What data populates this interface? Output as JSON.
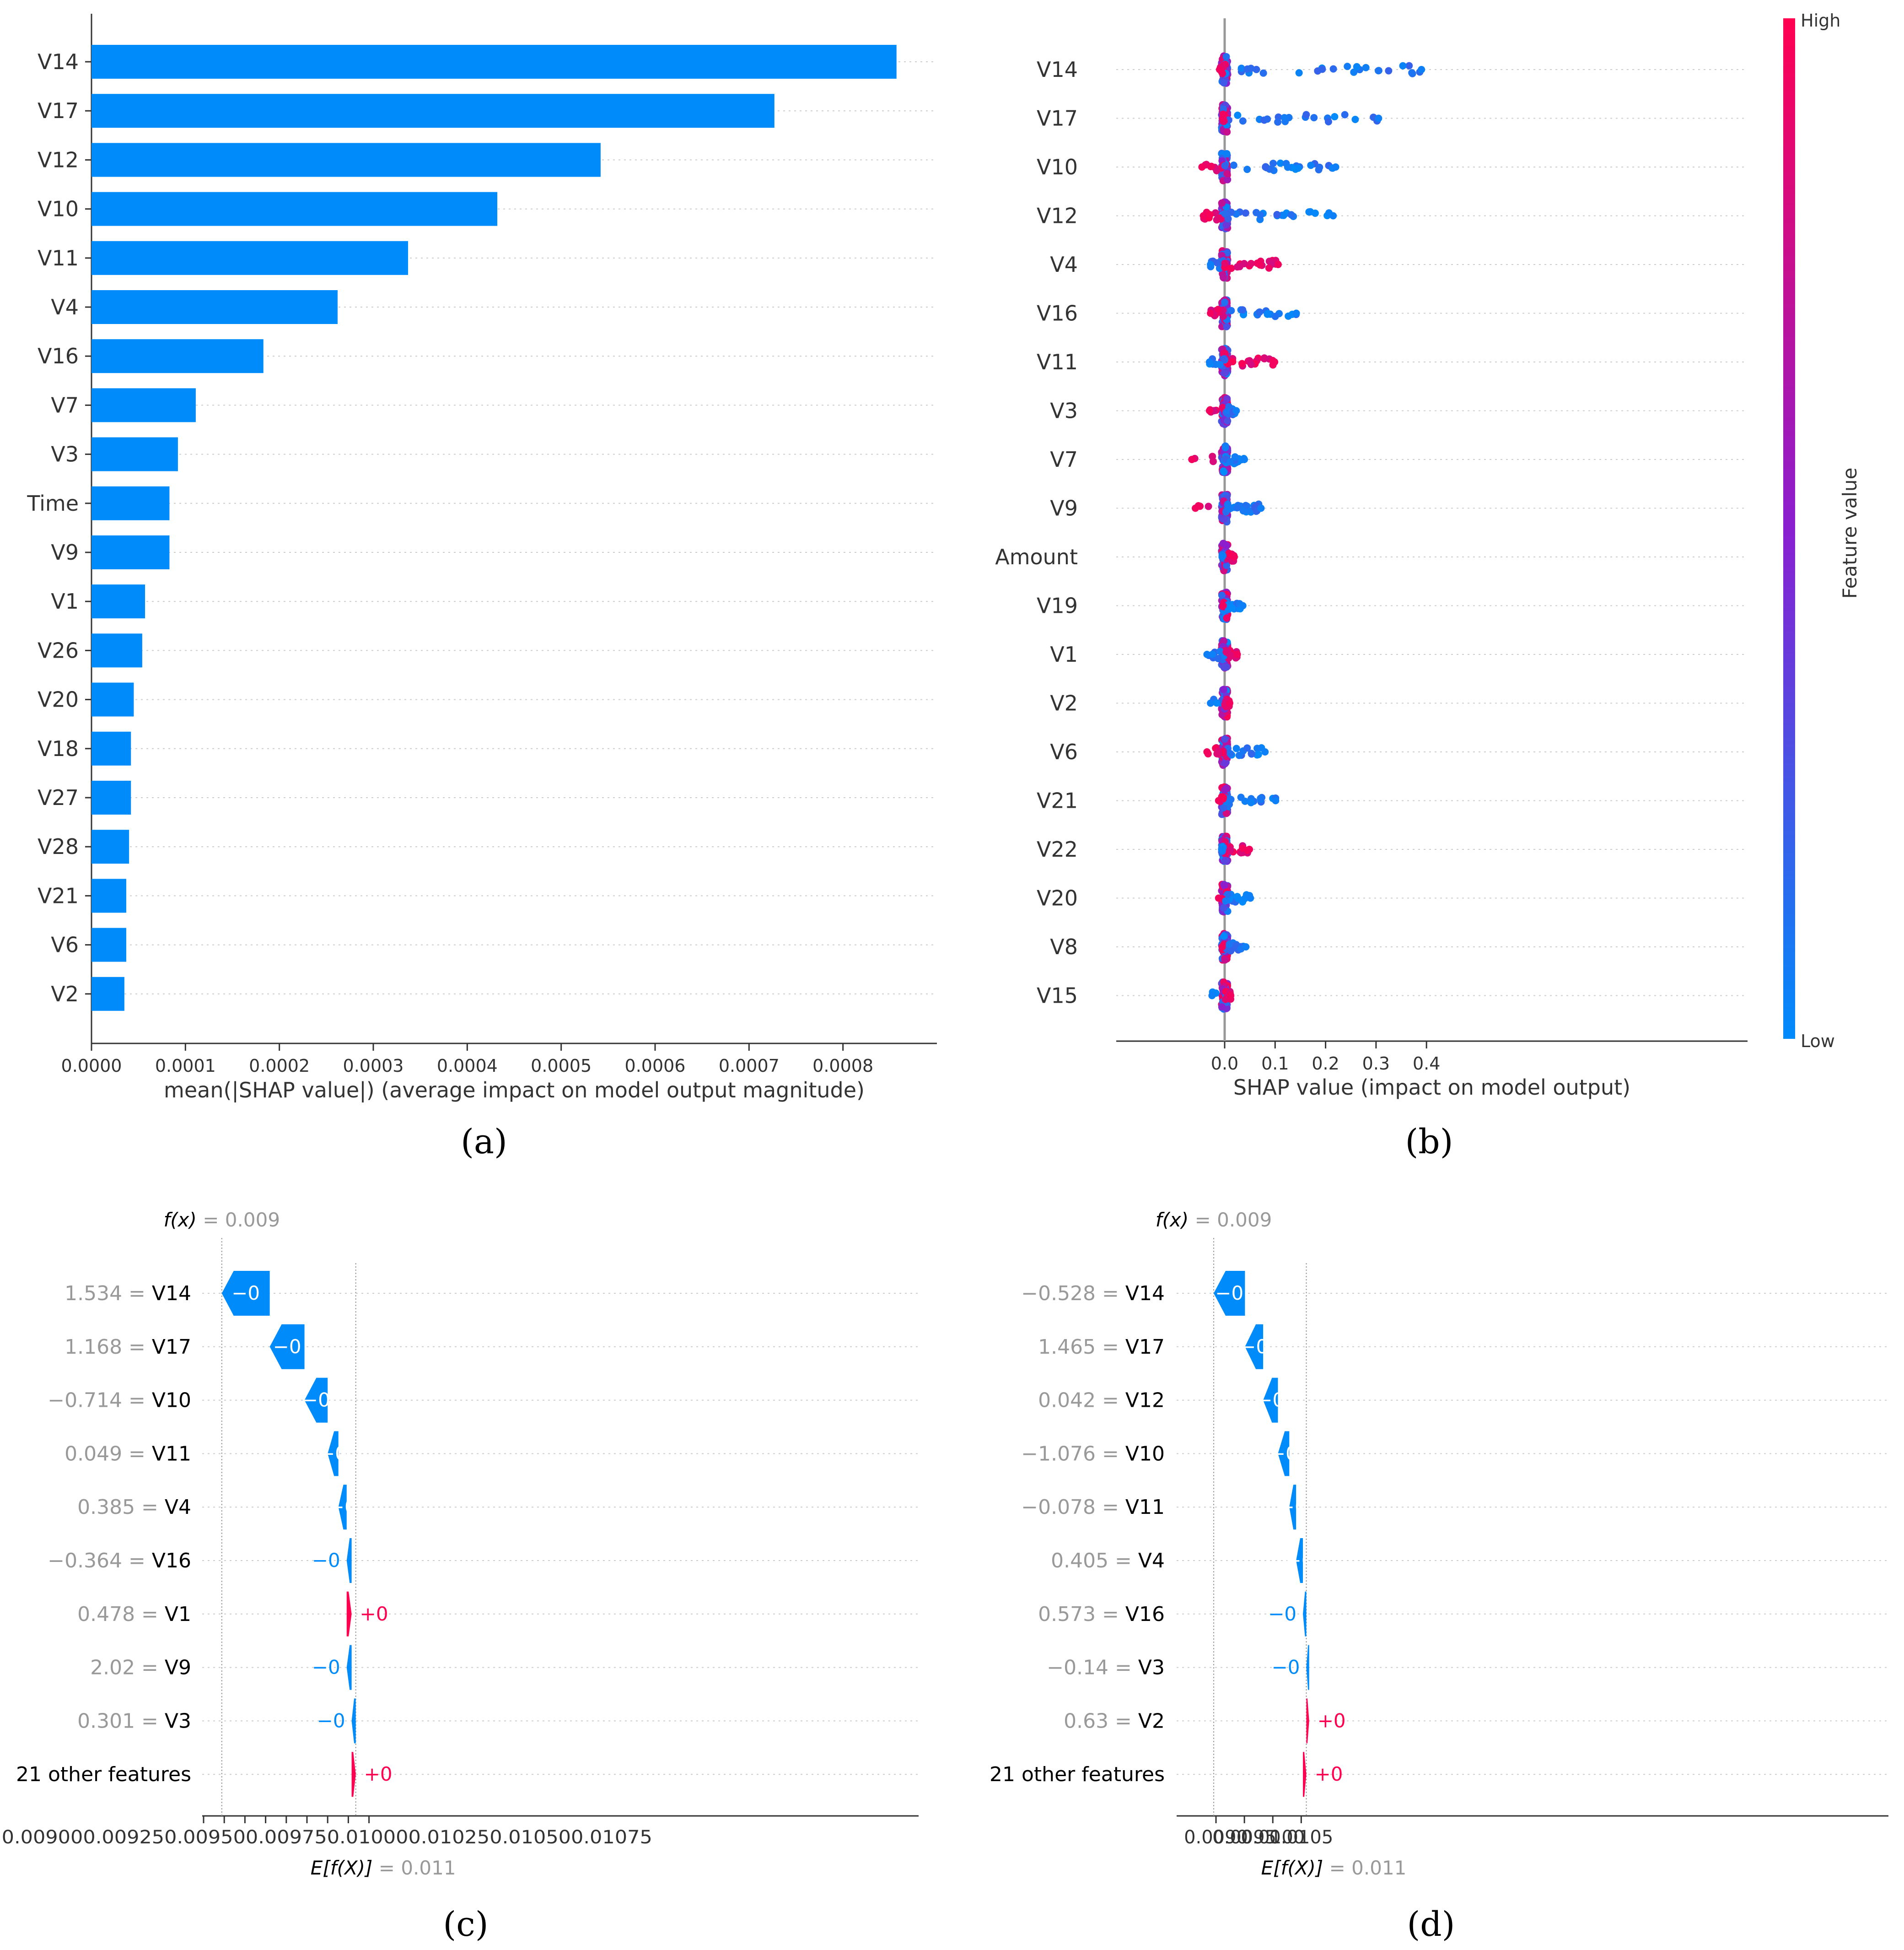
{
  "colors": {
    "blue": "#008bfb",
    "pink": "#ff0051",
    "axis": "#333333",
    "grey": "#999999",
    "grid": "#cccccc"
  },
  "chart_data": [
    {
      "id": "a",
      "panel_label": "(a)",
      "type": "bar",
      "orientation": "horizontal",
      "categories": [
        "V14",
        "V17",
        "V12",
        "V10",
        "V11",
        "V4",
        "V16",
        "V7",
        "V3",
        "Time",
        "V9",
        "V1",
        "V26",
        "V20",
        "V18",
        "V27",
        "V28",
        "V21",
        "V6",
        "V2"
      ],
      "values": [
        0.000857,
        0.000727,
        0.000542,
        0.000432,
        0.000337,
        0.000262,
        0.000183,
        0.000111,
        9.2e-05,
        8.3e-05,
        8.3e-05,
        5.7e-05,
        5.4e-05,
        4.5e-05,
        4.2e-05,
        4.2e-05,
        4e-05,
        3.7e-05,
        3.7e-05,
        3.5e-05
      ],
      "xlim": [
        0,
        0.0009
      ],
      "xticks": [
        0,
        0.0001,
        0.0002,
        0.0003,
        0.0004,
        0.0005,
        0.0006,
        0.0007,
        0.0008
      ],
      "xtick_labels": [
        "0.0000",
        "0.0001",
        "0.0002",
        "0.0003",
        "0.0004",
        "0.0005",
        "0.0006",
        "0.0007",
        "0.0008"
      ],
      "xlabel": "mean(|SHAP value|) (average impact on model output magnitude)"
    },
    {
      "id": "b",
      "panel_label": "(b)",
      "type": "scatter",
      "subtype": "beeswarm",
      "features": [
        {
          "name": "V14",
          "min": -0.01,
          "max": 0.39,
          "lowside": "right",
          "spread": 0.9
        },
        {
          "name": "V17",
          "min": -0.003,
          "max": 0.305,
          "lowside": "right",
          "spread": 0.85
        },
        {
          "name": "V10",
          "min": -0.045,
          "max": 0.22,
          "lowside": "right",
          "spread": 0.8
        },
        {
          "name": "V12",
          "min": -0.042,
          "max": 0.215,
          "lowside": "right",
          "spread": 0.8
        },
        {
          "name": "V4",
          "min": -0.028,
          "max": 0.106,
          "lowside": "left",
          "spread": 0.7
        },
        {
          "name": "V16",
          "min": -0.028,
          "max": 0.142,
          "lowside": "right",
          "spread": 0.7
        },
        {
          "name": "V11",
          "min": -0.03,
          "max": 0.099,
          "lowside": "left",
          "spread": 0.7
        },
        {
          "name": "V3",
          "min": -0.03,
          "max": 0.023,
          "lowside": "right",
          "spread": 0.4
        },
        {
          "name": "V7",
          "min": -0.065,
          "max": 0.039,
          "lowside": "right",
          "spread": 0.6
        },
        {
          "name": "V9",
          "min": -0.058,
          "max": 0.072,
          "lowside": "right",
          "spread": 0.6
        },
        {
          "name": "Amount",
          "min": -0.005,
          "max": 0.019,
          "lowside": "left",
          "spread": 0.3
        },
        {
          "name": "V19",
          "min": -0.003,
          "max": 0.036,
          "lowside": "right",
          "spread": 0.35
        },
        {
          "name": "V1",
          "min": -0.035,
          "max": 0.025,
          "lowside": "left",
          "spread": 0.45
        },
        {
          "name": "V2",
          "min": -0.028,
          "max": 0.01,
          "lowside": "left",
          "spread": 0.35
        },
        {
          "name": "V6",
          "min": -0.035,
          "max": 0.08,
          "lowside": "right",
          "spread": 0.45
        },
        {
          "name": "V21",
          "min": -0.012,
          "max": 0.101,
          "lowside": "right",
          "spread": 0.4
        },
        {
          "name": "V22",
          "min": -0.006,
          "max": 0.049,
          "lowside": "left",
          "spread": 0.4
        },
        {
          "name": "V20",
          "min": -0.012,
          "max": 0.051,
          "lowside": "right",
          "spread": 0.35
        },
        {
          "name": "V8",
          "min": -0.005,
          "max": 0.042,
          "lowside": "right",
          "spread": 0.3
        },
        {
          "name": "V15",
          "min": -0.025,
          "max": 0.012,
          "lowside": "left",
          "spread": 0.3
        }
      ],
      "xlim": [
        -0.085,
        0.41
      ],
      "xticks": [
        0,
        0.1,
        0.2,
        0.3,
        0.4
      ],
      "xtick_labels": [
        "0.0",
        "0.1",
        "0.2",
        "0.3",
        "0.4"
      ],
      "xlabel": "SHAP value (impact on model output)",
      "colorbar": {
        "label": "Feature value",
        "high": "High",
        "low": "Low"
      }
    },
    {
      "id": "c",
      "panel_label": "(c)",
      "type": "bar",
      "subtype": "waterfall",
      "fx_value": 0.009,
      "base_value": 0.011,
      "fx_label": "f(x)",
      "fx_text": " = 0.009",
      "base_label": "E[f(X)]",
      "base_text": " = 0.011",
      "rows": [
        {
          "value": "1.534",
          "feature": "V14",
          "start": 0.00955,
          "end": 0.00897,
          "label": "−0",
          "sign": "neg",
          "inside": true
        },
        {
          "value": "1.168",
          "feature": "V17",
          "start": 0.00997,
          "end": 0.00955,
          "label": "−0",
          "sign": "neg",
          "inside": true
        },
        {
          "value": "−0.714",
          "feature": "V10",
          "start": 0.01025,
          "end": 0.00997,
          "label": "−0",
          "sign": "neg",
          "inside": true
        },
        {
          "value": "0.049",
          "feature": "V11",
          "start": 0.01038,
          "end": 0.01025,
          "label": "−0",
          "sign": "neg",
          "inside": true
        },
        {
          "value": "0.385",
          "feature": "V4",
          "start": 0.01048,
          "end": 0.01038,
          "label": "−0",
          "sign": "neg",
          "inside": true
        },
        {
          "value": "−0.364",
          "feature": "V16",
          "start": 0.01054,
          "end": 0.01048,
          "label": "−0",
          "sign": "neg",
          "inside": false
        },
        {
          "value": "0.478",
          "feature": "V1",
          "start": 0.01048,
          "end": 0.01054,
          "label": "+0",
          "sign": "pos",
          "inside": false
        },
        {
          "value": "2.02",
          "feature": "V9",
          "start": 0.01054,
          "end": 0.01048,
          "label": "−0",
          "sign": "neg",
          "inside": false
        },
        {
          "value": "0.301",
          "feature": "V3",
          "start": 0.01059,
          "end": 0.01054,
          "label": "−0",
          "sign": "neg",
          "inside": false
        },
        {
          "value": "",
          "feature": "21 other features",
          "start": 0.01054,
          "end": 0.01059,
          "label": "+0",
          "sign": "pos",
          "inside": false
        }
      ],
      "xlim": [
        0.0087,
        0.0109
      ],
      "xticks": [
        0.00875,
        0.009,
        0.00925,
        0.0095,
        0.00975,
        0.01,
        0.01025,
        0.0105,
        0.01075
      ],
      "xtick_labels": [
        "0.00875",
        "0.00900",
        "0.00925",
        "0.00950",
        "0.00975",
        "0.01000",
        "0.01025",
        "0.01050",
        "0.01075"
      ],
      "xticks_joined": "0.008750.009000.009250.009500.009750.010000.010250.010500.01075"
    },
    {
      "id": "d",
      "panel_label": "(d)",
      "type": "bar",
      "subtype": "waterfall",
      "fx_value": 0.009,
      "base_value": 0.011,
      "fx_label": "f(x)",
      "fx_text": " = 0.009",
      "base_label": "E[f(X)]",
      "base_text": " = 0.011",
      "rows": [
        {
          "value": "−0.528",
          "feature": "V14",
          "start": 0.00951,
          "end": 0.00896,
          "label": "−0",
          "sign": "neg",
          "inside": true
        },
        {
          "value": "1.465",
          "feature": "V17",
          "start": 0.00983,
          "end": 0.00951,
          "label": "−0",
          "sign": "neg",
          "inside": true
        },
        {
          "value": "0.042",
          "feature": "V12",
          "start": 0.01009,
          "end": 0.00983,
          "label": "−0",
          "sign": "neg",
          "inside": true
        },
        {
          "value": "−1.076",
          "feature": "V10",
          "start": 0.01029,
          "end": 0.01009,
          "label": "−0",
          "sign": "neg",
          "inside": true
        },
        {
          "value": "−0.078",
          "feature": "V11",
          "start": 0.01041,
          "end": 0.01029,
          "label": "−0",
          "sign": "neg",
          "inside": true
        },
        {
          "value": "0.405",
          "feature": "V4",
          "start": 0.01053,
          "end": 0.01041,
          "label": "−0",
          "sign": "neg",
          "inside": true
        },
        {
          "value": "0.573",
          "feature": "V16",
          "start": 0.01059,
          "end": 0.01053,
          "label": "−0",
          "sign": "neg",
          "inside": false
        },
        {
          "value": "−0.14",
          "feature": "V3",
          "start": 0.01064,
          "end": 0.01059,
          "label": "−0",
          "sign": "neg",
          "inside": false
        },
        {
          "value": "0.63",
          "feature": "V2",
          "start": 0.01059,
          "end": 0.01064,
          "label": "+0",
          "sign": "pos",
          "inside": false
        },
        {
          "value": "",
          "feature": "21 other features",
          "start": 0.01053,
          "end": 0.01059,
          "label": "+0",
          "sign": "pos",
          "inside": false
        }
      ],
      "xlim": [
        0.0087,
        0.0109
      ],
      "xticks": [
        0.009,
        0.0095,
        0.01,
        0.0105
      ],
      "xtick_labels": [
        "0.0090",
        "0.0095",
        "0.0100",
        "0.0105"
      ]
    }
  ]
}
